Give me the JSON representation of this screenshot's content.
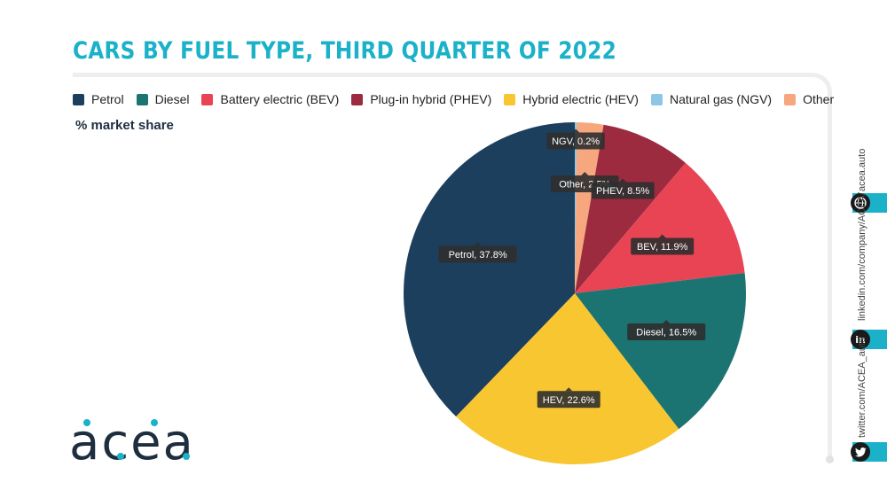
{
  "header": {
    "title": "CARS BY FUEL TYPE, THIRD QUARTER OF 2022"
  },
  "legend": {
    "subtitle": "% market share",
    "items": [
      {
        "label": "Petrol",
        "color": "#1d3f5e"
      },
      {
        "label": "Diesel",
        "color": "#1c7472"
      },
      {
        "label": "Battery electric (BEV)",
        "color": "#e84454"
      },
      {
        "label": "Plug-in hybrid (PHEV)",
        "color": "#9c2b40"
      },
      {
        "label": "Hybrid electric (HEV)",
        "color": "#f8c630"
      },
      {
        "label": "Natural gas (NGV)",
        "color": "#8ec6e8"
      },
      {
        "label": "Other",
        "color": "#f6a77e"
      }
    ]
  },
  "chart_data": {
    "type": "pie",
    "title": "CARS BY FUEL TYPE, THIRD QUARTER OF 2022",
    "subtitle": "% market share",
    "legend_position": "top",
    "slices": [
      {
        "name": "Natural gas (NGV)",
        "value": 0.2,
        "color": "#8ec6e8",
        "label": "NGV, 0.2%"
      },
      {
        "name": "Other",
        "value": 2.5,
        "color": "#f6a77e",
        "label": "Other, 2.5%"
      },
      {
        "name": "Plug-in hybrid (PHEV)",
        "value": 8.5,
        "color": "#9c2b40",
        "label": "PHEV, 8.5%"
      },
      {
        "name": "Battery electric (BEV)",
        "value": 11.9,
        "color": "#e84454",
        "label": "BEV, 11.9%"
      },
      {
        "name": "Diesel",
        "value": 16.5,
        "color": "#1c7472",
        "label": "Diesel, 16.5%"
      },
      {
        "name": "Hybrid electric (HEV)",
        "value": 22.6,
        "color": "#f8c630",
        "label": "HEV, 22.6%"
      },
      {
        "name": "Petrol",
        "value": 37.8,
        "color": "#1d3f5e",
        "label": "Petrol, 37.8%"
      }
    ]
  },
  "brand": {
    "logo_text": "acea",
    "logo_color": "#1d2e3f",
    "accent": "#1ab1c9"
  },
  "social": {
    "website": "acea.auto",
    "linkedin": "linkedin.com/company/ACEA/",
    "twitter": "twitter.com/ACEA_auto",
    "icons": [
      "globe-icon",
      "linkedin-icon",
      "twitter-icon"
    ]
  }
}
